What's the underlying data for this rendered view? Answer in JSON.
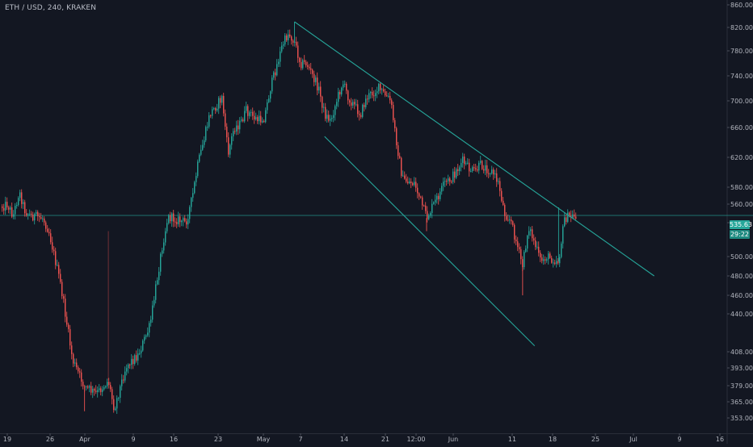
{
  "header": {
    "symbol_line": "ETH / USD, 240, KRAKEN"
  },
  "price_scale": {
    "ticks": [
      "860.00",
      "820.00",
      "780.00",
      "740.00",
      "700.00",
      "660.00",
      "620.00",
      "580.00",
      "560.00",
      "520.00",
      "500.00",
      "480.00",
      "460.00",
      "440.00",
      "408.00",
      "393.00",
      "379.00",
      "365.00",
      "353.00"
    ],
    "last_price_label": "535.63",
    "countdown_label": "29:22"
  },
  "time_scale": {
    "ticks": [
      "19",
      "26",
      "Apr",
      "9",
      "16",
      "23",
      "May",
      "7",
      "14",
      "21",
      "12:00",
      "Jun",
      "11",
      "18",
      "25",
      "Jul",
      "9",
      "16"
    ]
  },
  "colors": {
    "background": "#131722",
    "up": "#26a69a",
    "down": "#ef5350",
    "trendline": "#26a69a",
    "axis_text": "#b2b5be",
    "grid": "#1e2230"
  },
  "chart_data": {
    "type": "candlestick",
    "title": "ETH / USD, 240, KRAKEN",
    "xlabel": "",
    "ylabel": "",
    "x": [
      "Mar 19",
      "Mar 26",
      "Apr 2",
      "Apr 9",
      "Apr 16",
      "Apr 23",
      "Apr 30",
      "May 7",
      "May 14",
      "May 21",
      "May 28",
      "Jun 4",
      "Jun 11",
      "Jun 18",
      "Jun 22"
    ],
    "close_path": [
      [
        "Mar 18",
        555
      ],
      [
        "Mar 19",
        560
      ],
      [
        "Mar 20",
        535
      ],
      [
        "Mar 21",
        575
      ],
      [
        "Mar 22",
        545
      ],
      [
        "Mar 23",
        535
      ],
      [
        "Mar 25",
        530
      ],
      [
        "Mar 26",
        515
      ],
      [
        "Mar 28",
        470
      ],
      [
        "Mar 30",
        400
      ],
      [
        "Apr 1",
        378
      ],
      [
        "Apr 3",
        372
      ],
      [
        "Apr 5",
        383
      ],
      [
        "Apr 6",
        360
      ],
      [
        "Apr 8",
        395
      ],
      [
        "Apr 10",
        405
      ],
      [
        "Apr 12",
        430
      ],
      [
        "Apr 14",
        505
      ],
      [
        "Apr 15",
        532
      ],
      [
        "Apr 17",
        525
      ],
      [
        "Apr 18",
        520
      ],
      [
        "Apr 19",
        565
      ],
      [
        "Apr 20",
        610
      ],
      [
        "Apr 22",
        680
      ],
      [
        "Apr 24",
        705
      ],
      [
        "Apr 25",
        625
      ],
      [
        "Apr 26",
        660
      ],
      [
        "Apr 27",
        665
      ],
      [
        "Apr 28",
        685
      ],
      [
        "Apr 30",
        670
      ],
      [
        "May 1",
        675
      ],
      [
        "May 2",
        720
      ],
      [
        "May 4",
        790
      ],
      [
        "May 5",
        810
      ],
      [
        "May 6",
        795
      ],
      [
        "May 7",
        760
      ],
      [
        "May 8",
        760
      ],
      [
        "May 9",
        740
      ],
      [
        "May 10",
        720
      ],
      [
        "May 11",
        680
      ],
      [
        "May 12",
        670
      ],
      [
        "May 13",
        700
      ],
      [
        "May 14",
        730
      ],
      [
        "May 15",
        705
      ],
      [
        "May 17",
        680
      ],
      [
        "May 18",
        705
      ],
      [
        "May 20",
        720
      ],
      [
        "May 22",
        700
      ],
      [
        "May 23",
        640
      ],
      [
        "May 24",
        590
      ],
      [
        "May 26",
        585
      ],
      [
        "May 28",
        530
      ],
      [
        "May 29",
        555
      ],
      [
        "May 30",
        570
      ],
      [
        "May 31",
        585
      ],
      [
        "Jun 1",
        590
      ],
      [
        "Jun 3",
        615
      ],
      [
        "Jun 4",
        605
      ],
      [
        "Jun 5",
        600
      ],
      [
        "Jun 6",
        610
      ],
      [
        "Jun 8",
        600
      ],
      [
        "Jun 9",
        585
      ],
      [
        "Jun 10",
        540
      ],
      [
        "Jun 11",
        525
      ],
      [
        "Jun 13",
        490
      ],
      [
        "Jun 14",
        518
      ],
      [
        "Jun 16",
        495
      ],
      [
        "Jun 17",
        500
      ],
      [
        "Jun 19",
        495
      ],
      [
        "Jun 20",
        530
      ],
      [
        "Jun 22",
        535
      ]
    ],
    "wick_extremes": [
      {
        "x": "Apr 1",
        "low": 358
      },
      {
        "x": "May 6",
        "high": 830
      },
      {
        "x": "May 28",
        "low": 515
      },
      {
        "x": "Jun 13",
        "low": 460
      },
      {
        "x": "Jun 19",
        "high": 553
      }
    ],
    "horizontal_line": 535.63,
    "trendlines": [
      {
        "from": [
          "May 6",
          830
        ],
        "to": [
          "Jul 5",
          480
        ]
      },
      {
        "from": [
          "May 11",
          648
        ],
        "to": [
          "Jun 15",
          413
        ]
      }
    ],
    "last_price": 535.63,
    "grid": false,
    "legend": "none"
  }
}
